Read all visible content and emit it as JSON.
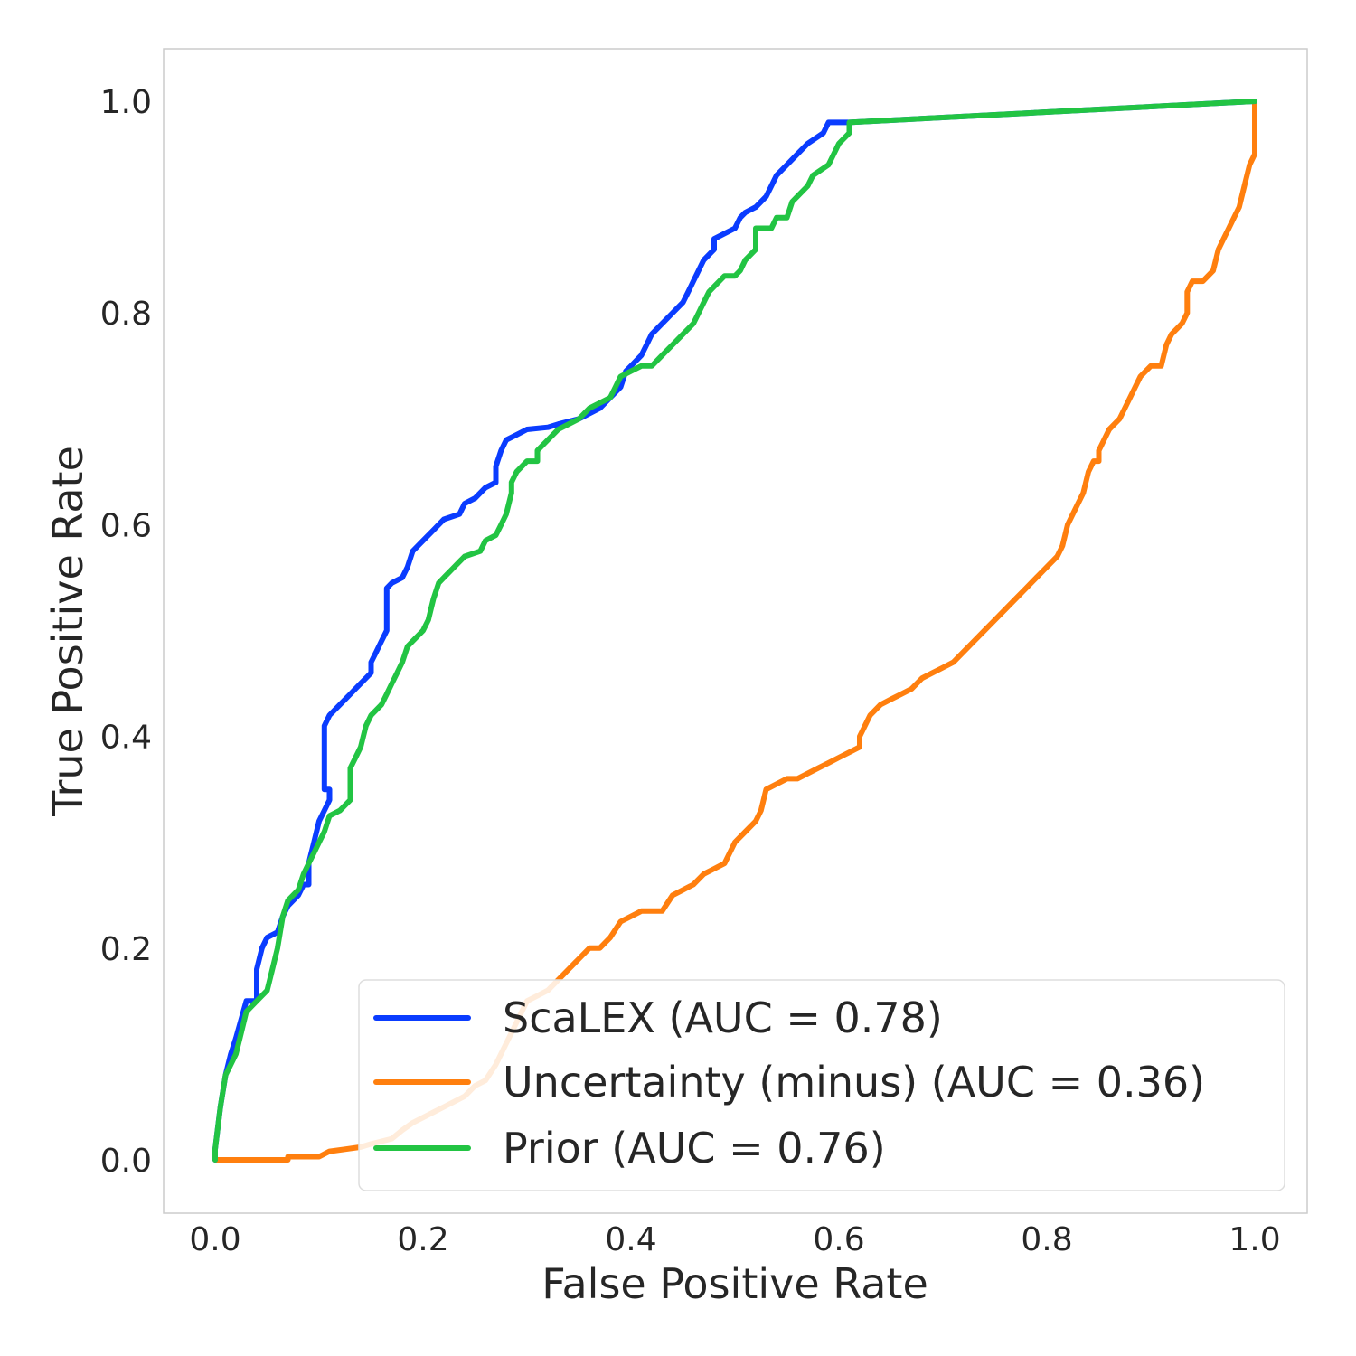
{
  "chart_data": {
    "type": "line",
    "title": "",
    "xlabel": "False Positive Rate",
    "ylabel": "True Positive Rate",
    "xlim": [
      -0.05,
      1.05
    ],
    "ylim": [
      -0.05,
      1.05
    ],
    "x_ticks": [
      "0.0",
      "0.2",
      "0.4",
      "0.6",
      "0.8",
      "1.0"
    ],
    "y_ticks": [
      "0.0",
      "0.2",
      "0.4",
      "0.6",
      "0.8",
      "1.0"
    ],
    "grid": false,
    "legend_position": "lower-right",
    "series": [
      {
        "name": "ScaLEX (AUC = 0.78)",
        "color": "#0a3cff",
        "points": [
          [
            0.0,
            0.0
          ],
          [
            0.0,
            0.01
          ],
          [
            0.005,
            0.05
          ],
          [
            0.01,
            0.08
          ],
          [
            0.015,
            0.1
          ],
          [
            0.02,
            0.115
          ],
          [
            0.03,
            0.15
          ],
          [
            0.04,
            0.15
          ],
          [
            0.04,
            0.18
          ],
          [
            0.045,
            0.2
          ],
          [
            0.05,
            0.21
          ],
          [
            0.06,
            0.215
          ],
          [
            0.065,
            0.23
          ],
          [
            0.07,
            0.24
          ],
          [
            0.08,
            0.25
          ],
          [
            0.085,
            0.26
          ],
          [
            0.09,
            0.26
          ],
          [
            0.09,
            0.28
          ],
          [
            0.095,
            0.3
          ],
          [
            0.1,
            0.32
          ],
          [
            0.105,
            0.33
          ],
          [
            0.11,
            0.34
          ],
          [
            0.11,
            0.35
          ],
          [
            0.105,
            0.35
          ],
          [
            0.105,
            0.41
          ],
          [
            0.11,
            0.42
          ],
          [
            0.12,
            0.43
          ],
          [
            0.13,
            0.44
          ],
          [
            0.14,
            0.45
          ],
          [
            0.15,
            0.46
          ],
          [
            0.15,
            0.47
          ],
          [
            0.155,
            0.48
          ],
          [
            0.16,
            0.49
          ],
          [
            0.165,
            0.5
          ],
          [
            0.165,
            0.54
          ],
          [
            0.17,
            0.545
          ],
          [
            0.18,
            0.55
          ],
          [
            0.185,
            0.56
          ],
          [
            0.19,
            0.575
          ],
          [
            0.2,
            0.585
          ],
          [
            0.21,
            0.595
          ],
          [
            0.22,
            0.605
          ],
          [
            0.235,
            0.61
          ],
          [
            0.24,
            0.62
          ],
          [
            0.25,
            0.625
          ],
          [
            0.26,
            0.635
          ],
          [
            0.27,
            0.64
          ],
          [
            0.27,
            0.655
          ],
          [
            0.275,
            0.67
          ],
          [
            0.28,
            0.68
          ],
          [
            0.29,
            0.685
          ],
          [
            0.3,
            0.69
          ],
          [
            0.32,
            0.692
          ],
          [
            0.33,
            0.695
          ],
          [
            0.35,
            0.7
          ],
          [
            0.36,
            0.705
          ],
          [
            0.37,
            0.71
          ],
          [
            0.38,
            0.72
          ],
          [
            0.39,
            0.73
          ],
          [
            0.395,
            0.745
          ],
          [
            0.4,
            0.75
          ],
          [
            0.41,
            0.76
          ],
          [
            0.415,
            0.77
          ],
          [
            0.42,
            0.78
          ],
          [
            0.43,
            0.79
          ],
          [
            0.44,
            0.8
          ],
          [
            0.45,
            0.81
          ],
          [
            0.455,
            0.82
          ],
          [
            0.46,
            0.83
          ],
          [
            0.47,
            0.85
          ],
          [
            0.48,
            0.86
          ],
          [
            0.48,
            0.87
          ],
          [
            0.5,
            0.88
          ],
          [
            0.505,
            0.89
          ],
          [
            0.51,
            0.895
          ],
          [
            0.52,
            0.9
          ],
          [
            0.53,
            0.91
          ],
          [
            0.535,
            0.92
          ],
          [
            0.54,
            0.93
          ],
          [
            0.55,
            0.94
          ],
          [
            0.56,
            0.95
          ],
          [
            0.57,
            0.96
          ],
          [
            0.585,
            0.97
          ],
          [
            0.59,
            0.98
          ],
          [
            0.6,
            0.98
          ],
          [
            0.61,
            0.98
          ],
          [
            1.0,
            1.0
          ]
        ]
      },
      {
        "name": "Uncertainty (minus) (AUC = 0.36)",
        "color": "#ff7f0e",
        "points": [
          [
            0.0,
            0.0
          ],
          [
            0.07,
            0.0
          ],
          [
            0.07,
            0.003
          ],
          [
            0.1,
            0.003
          ],
          [
            0.11,
            0.008
          ],
          [
            0.14,
            0.012
          ],
          [
            0.15,
            0.015
          ],
          [
            0.17,
            0.02
          ],
          [
            0.18,
            0.028
          ],
          [
            0.19,
            0.035
          ],
          [
            0.2,
            0.04
          ],
          [
            0.21,
            0.045
          ],
          [
            0.22,
            0.05
          ],
          [
            0.24,
            0.06
          ],
          [
            0.25,
            0.07
          ],
          [
            0.26,
            0.075
          ],
          [
            0.27,
            0.09
          ],
          [
            0.28,
            0.11
          ],
          [
            0.29,
            0.13
          ],
          [
            0.3,
            0.15
          ],
          [
            0.31,
            0.155
          ],
          [
            0.32,
            0.16
          ],
          [
            0.33,
            0.17
          ],
          [
            0.34,
            0.18
          ],
          [
            0.36,
            0.2
          ],
          [
            0.37,
            0.2
          ],
          [
            0.38,
            0.21
          ],
          [
            0.39,
            0.225
          ],
          [
            0.4,
            0.23
          ],
          [
            0.41,
            0.235
          ],
          [
            0.43,
            0.235
          ],
          [
            0.44,
            0.25
          ],
          [
            0.45,
            0.255
          ],
          [
            0.46,
            0.26
          ],
          [
            0.47,
            0.27
          ],
          [
            0.48,
            0.275
          ],
          [
            0.49,
            0.28
          ],
          [
            0.5,
            0.3
          ],
          [
            0.51,
            0.31
          ],
          [
            0.52,
            0.32
          ],
          [
            0.525,
            0.33
          ],
          [
            0.53,
            0.35
          ],
          [
            0.54,
            0.355
          ],
          [
            0.55,
            0.36
          ],
          [
            0.56,
            0.36
          ],
          [
            0.58,
            0.37
          ],
          [
            0.59,
            0.375
          ],
          [
            0.6,
            0.38
          ],
          [
            0.61,
            0.385
          ],
          [
            0.62,
            0.39
          ],
          [
            0.62,
            0.4
          ],
          [
            0.63,
            0.42
          ],
          [
            0.64,
            0.43
          ],
          [
            0.65,
            0.435
          ],
          [
            0.66,
            0.44
          ],
          [
            0.67,
            0.445
          ],
          [
            0.68,
            0.455
          ],
          [
            0.69,
            0.46
          ],
          [
            0.7,
            0.465
          ],
          [
            0.71,
            0.47
          ],
          [
            0.72,
            0.48
          ],
          [
            0.73,
            0.49
          ],
          [
            0.74,
            0.5
          ],
          [
            0.75,
            0.51
          ],
          [
            0.76,
            0.52
          ],
          [
            0.77,
            0.53
          ],
          [
            0.78,
            0.54
          ],
          [
            0.79,
            0.55
          ],
          [
            0.8,
            0.56
          ],
          [
            0.81,
            0.57
          ],
          [
            0.815,
            0.58
          ],
          [
            0.82,
            0.6
          ],
          [
            0.83,
            0.62
          ],
          [
            0.835,
            0.63
          ],
          [
            0.84,
            0.65
          ],
          [
            0.845,
            0.66
          ],
          [
            0.85,
            0.66
          ],
          [
            0.85,
            0.67
          ],
          [
            0.86,
            0.69
          ],
          [
            0.87,
            0.7
          ],
          [
            0.88,
            0.72
          ],
          [
            0.89,
            0.74
          ],
          [
            0.9,
            0.75
          ],
          [
            0.91,
            0.75
          ],
          [
            0.915,
            0.77
          ],
          [
            0.92,
            0.78
          ],
          [
            0.93,
            0.79
          ],
          [
            0.935,
            0.8
          ],
          [
            0.935,
            0.82
          ],
          [
            0.94,
            0.83
          ],
          [
            0.95,
            0.83
          ],
          [
            0.96,
            0.84
          ],
          [
            0.965,
            0.86
          ],
          [
            0.97,
            0.87
          ],
          [
            0.975,
            0.88
          ],
          [
            0.98,
            0.89
          ],
          [
            0.985,
            0.9
          ],
          [
            0.99,
            0.92
          ],
          [
            0.995,
            0.94
          ],
          [
            1.0,
            0.95
          ],
          [
            1.0,
            0.96
          ],
          [
            1.0,
            0.97
          ],
          [
            1.0,
            0.98
          ],
          [
            1.0,
            0.99
          ],
          [
            1.0,
            1.0
          ]
        ]
      },
      {
        "name": "Prior (AUC = 0.76)",
        "color": "#22c443",
        "points": [
          [
            0.0,
            0.0
          ],
          [
            0.0,
            0.01
          ],
          [
            0.005,
            0.05
          ],
          [
            0.01,
            0.08
          ],
          [
            0.02,
            0.1
          ],
          [
            0.025,
            0.12
          ],
          [
            0.03,
            0.14
          ],
          [
            0.04,
            0.15
          ],
          [
            0.05,
            0.16
          ],
          [
            0.055,
            0.18
          ],
          [
            0.06,
            0.2
          ],
          [
            0.065,
            0.23
          ],
          [
            0.07,
            0.245
          ],
          [
            0.08,
            0.255
          ],
          [
            0.085,
            0.27
          ],
          [
            0.09,
            0.28
          ],
          [
            0.095,
            0.29
          ],
          [
            0.1,
            0.3
          ],
          [
            0.105,
            0.31
          ],
          [
            0.11,
            0.325
          ],
          [
            0.12,
            0.33
          ],
          [
            0.13,
            0.34
          ],
          [
            0.13,
            0.37
          ],
          [
            0.135,
            0.38
          ],
          [
            0.14,
            0.39
          ],
          [
            0.145,
            0.41
          ],
          [
            0.15,
            0.42
          ],
          [
            0.16,
            0.43
          ],
          [
            0.165,
            0.44
          ],
          [
            0.17,
            0.45
          ],
          [
            0.175,
            0.46
          ],
          [
            0.18,
            0.47
          ],
          [
            0.185,
            0.485
          ],
          [
            0.19,
            0.49
          ],
          [
            0.2,
            0.5
          ],
          [
            0.205,
            0.51
          ],
          [
            0.21,
            0.53
          ],
          [
            0.215,
            0.545
          ],
          [
            0.22,
            0.55
          ],
          [
            0.23,
            0.56
          ],
          [
            0.24,
            0.57
          ],
          [
            0.255,
            0.575
          ],
          [
            0.26,
            0.585
          ],
          [
            0.27,
            0.59
          ],
          [
            0.275,
            0.6
          ],
          [
            0.28,
            0.61
          ],
          [
            0.285,
            0.63
          ],
          [
            0.285,
            0.64
          ],
          [
            0.29,
            0.65
          ],
          [
            0.3,
            0.66
          ],
          [
            0.31,
            0.66
          ],
          [
            0.31,
            0.67
          ],
          [
            0.32,
            0.68
          ],
          [
            0.33,
            0.69
          ],
          [
            0.34,
            0.695
          ],
          [
            0.35,
            0.7
          ],
          [
            0.36,
            0.71
          ],
          [
            0.38,
            0.72
          ],
          [
            0.385,
            0.73
          ],
          [
            0.39,
            0.74
          ],
          [
            0.4,
            0.745
          ],
          [
            0.41,
            0.75
          ],
          [
            0.42,
            0.75
          ],
          [
            0.43,
            0.76
          ],
          [
            0.44,
            0.77
          ],
          [
            0.45,
            0.78
          ],
          [
            0.46,
            0.79
          ],
          [
            0.465,
            0.8
          ],
          [
            0.47,
            0.81
          ],
          [
            0.475,
            0.82
          ],
          [
            0.48,
            0.825
          ],
          [
            0.49,
            0.835
          ],
          [
            0.5,
            0.835
          ],
          [
            0.505,
            0.84
          ],
          [
            0.51,
            0.85
          ],
          [
            0.52,
            0.86
          ],
          [
            0.52,
            0.88
          ],
          [
            0.535,
            0.88
          ],
          [
            0.54,
            0.89
          ],
          [
            0.55,
            0.89
          ],
          [
            0.555,
            0.905
          ],
          [
            0.56,
            0.91
          ],
          [
            0.57,
            0.92
          ],
          [
            0.575,
            0.93
          ],
          [
            0.59,
            0.94
          ],
          [
            0.6,
            0.96
          ],
          [
            0.61,
            0.97
          ],
          [
            0.61,
            0.98
          ],
          [
            1.0,
            1.0
          ]
        ]
      }
    ]
  }
}
